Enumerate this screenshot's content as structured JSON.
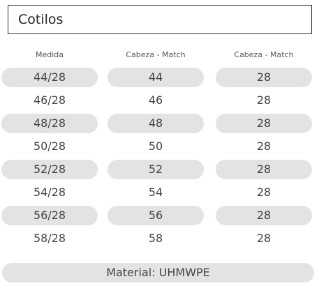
{
  "header": {
    "title": "Cotilos"
  },
  "table": {
    "headers": [
      "Medida",
      "Cabeza - Match",
      "Cabeza - Match"
    ],
    "rows": [
      [
        "44/28",
        "44",
        "28"
      ],
      [
        "46/28",
        "46",
        "28"
      ],
      [
        "48/28",
        "48",
        "28"
      ],
      [
        "50/28",
        "50",
        "28"
      ],
      [
        "52/28",
        "52",
        "28"
      ],
      [
        "54/28",
        "54",
        "28"
      ],
      [
        "56/28",
        "56",
        "28"
      ],
      [
        "58/28",
        "58",
        "28"
      ]
    ]
  },
  "footer": {
    "text": "Material: UHMWPE"
  }
}
